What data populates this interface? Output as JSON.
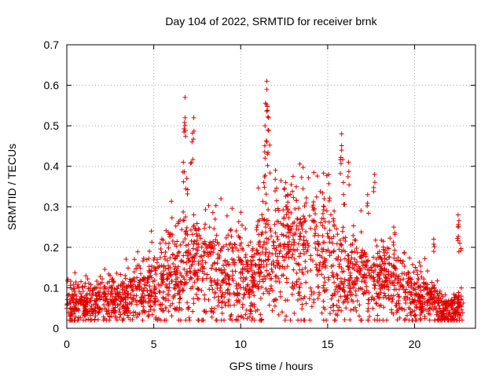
{
  "chart_data": {
    "type": "scatter",
    "title": "Day 104 of 2022, SRMTID for receiver brnk",
    "xlabel": "GPS time / hours",
    "ylabel": "SRMTID / TECUs",
    "xlim": [
      0,
      23.5
    ],
    "ylim": [
      0,
      0.7
    ],
    "xticks": [
      0,
      5,
      10,
      15,
      20
    ],
    "yticks": [
      0,
      0.1,
      0.2,
      0.3,
      0.4,
      0.5,
      0.6,
      0.7
    ],
    "grid": true,
    "marker": "plus",
    "color": "#e00000",
    "series": [
      {
        "name": "SRMTID",
        "envelope": [
          [
            0.0,
            0.07
          ],
          [
            0.5,
            0.06
          ],
          [
            1.0,
            0.055
          ],
          [
            1.5,
            0.06
          ],
          [
            2.0,
            0.065
          ],
          [
            2.5,
            0.075
          ],
          [
            3.0,
            0.07
          ],
          [
            3.5,
            0.075
          ],
          [
            4.0,
            0.09
          ],
          [
            4.5,
            0.09
          ],
          [
            5.0,
            0.1
          ],
          [
            5.5,
            0.11
          ],
          [
            6.0,
            0.13
          ],
          [
            6.5,
            0.14
          ],
          [
            7.0,
            0.15
          ],
          [
            7.5,
            0.15
          ],
          [
            8.0,
            0.14
          ],
          [
            8.5,
            0.15
          ],
          [
            9.0,
            0.14
          ],
          [
            9.5,
            0.14
          ],
          [
            10.0,
            0.14
          ],
          [
            10.5,
            0.13
          ],
          [
            11.0,
            0.15
          ],
          [
            11.5,
            0.17
          ],
          [
            12.0,
            0.18
          ],
          [
            12.5,
            0.19
          ],
          [
            13.0,
            0.2
          ],
          [
            13.5,
            0.19
          ],
          [
            14.0,
            0.18
          ],
          [
            14.5,
            0.2
          ],
          [
            15.0,
            0.19
          ],
          [
            15.5,
            0.16
          ],
          [
            16.0,
            0.14
          ],
          [
            16.5,
            0.13
          ],
          [
            17.0,
            0.12
          ],
          [
            17.5,
            0.11
          ],
          [
            18.0,
            0.12
          ],
          [
            18.5,
            0.12
          ],
          [
            19.0,
            0.11
          ],
          [
            19.5,
            0.1
          ],
          [
            20.0,
            0.09
          ],
          [
            20.5,
            0.08
          ],
          [
            21.0,
            0.07
          ],
          [
            21.5,
            0.05
          ],
          [
            22.0,
            0.04
          ],
          [
            22.5,
            0.05
          ],
          [
            22.8,
            0.05
          ]
        ],
        "spikes": [
          [
            6.8,
            0.57
          ],
          [
            6.8,
            0.52
          ],
          [
            6.7,
            0.41
          ],
          [
            6.9,
            0.37
          ],
          [
            7.2,
            0.46
          ],
          [
            7.3,
            0.52
          ],
          [
            7.3,
            0.28
          ],
          [
            11.5,
            0.61
          ],
          [
            11.5,
            0.59
          ],
          [
            11.4,
            0.5
          ],
          [
            11.5,
            0.46
          ],
          [
            11.4,
            0.42
          ],
          [
            11.6,
            0.52
          ],
          [
            12.0,
            0.39
          ],
          [
            12.7,
            0.33
          ],
          [
            14.8,
            0.32
          ],
          [
            15.8,
            0.48
          ],
          [
            15.8,
            0.44
          ],
          [
            16.2,
            0.41
          ],
          [
            15.9,
            0.36
          ],
          [
            17.3,
            0.33
          ],
          [
            17.7,
            0.38
          ],
          [
            18.8,
            0.25
          ],
          [
            21.1,
            0.22
          ],
          [
            22.5,
            0.28
          ],
          [
            22.5,
            0.25
          ],
          [
            22.6,
            0.21
          ]
        ],
        "point_count": 2400,
        "seed": 104
      }
    ]
  }
}
